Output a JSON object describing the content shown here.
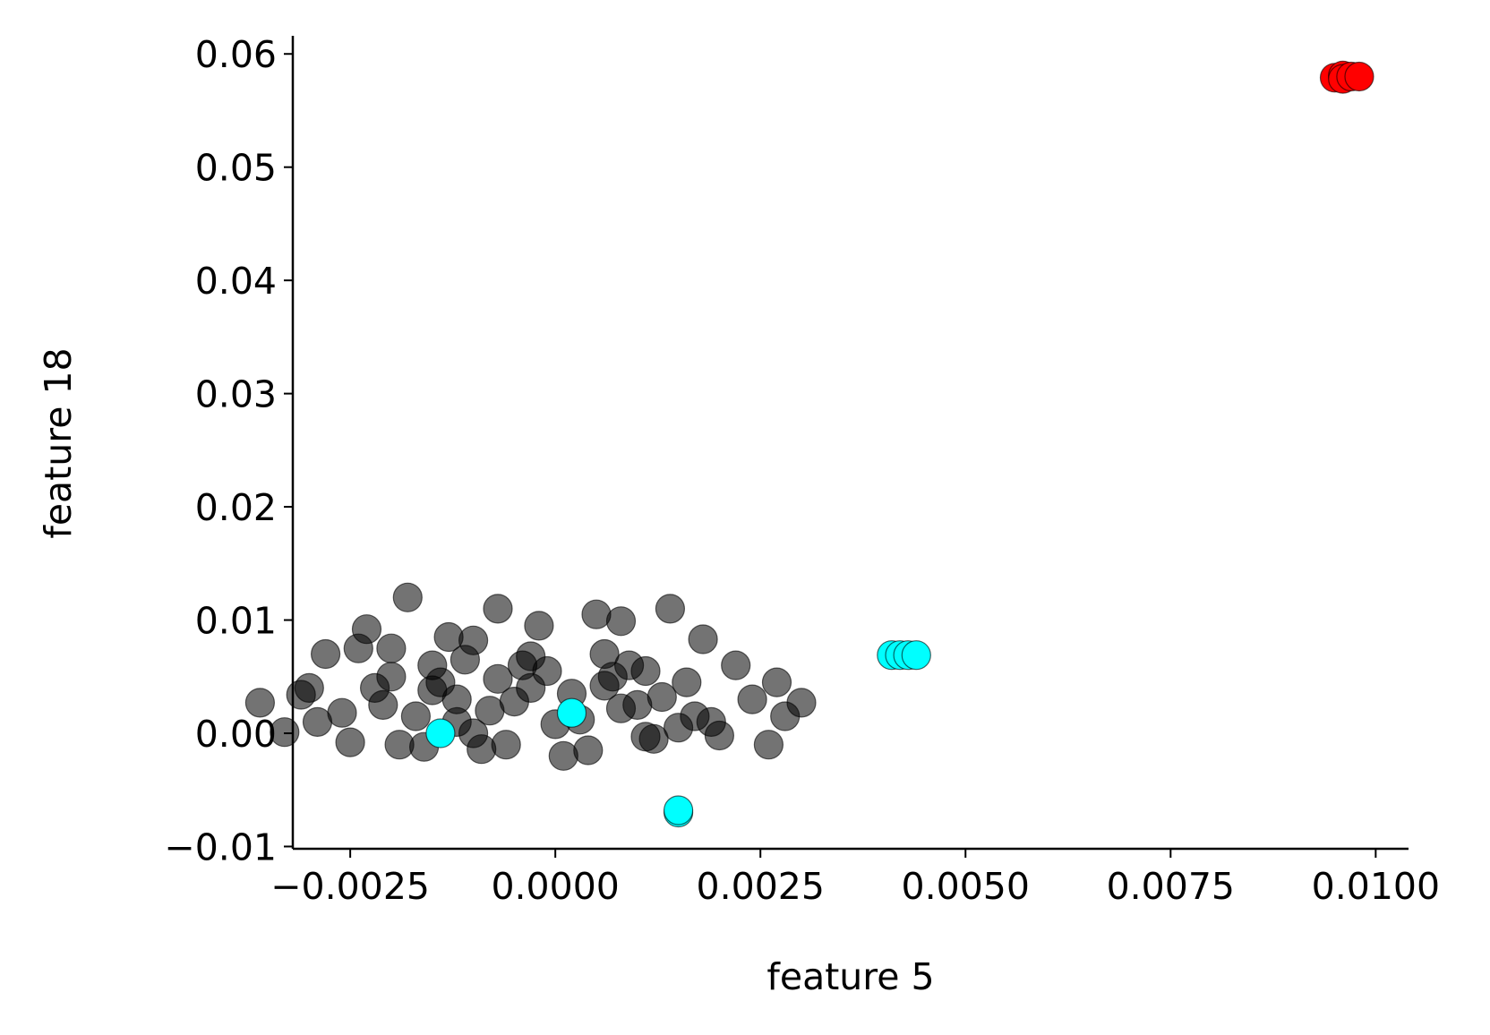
{
  "chart_data": {
    "type": "scatter",
    "title": "",
    "xlabel": "feature 5",
    "ylabel": "feature 18",
    "xlim": [
      -0.0032,
      0.0104
    ],
    "ylim": [
      -0.0102,
      0.0616
    ],
    "x_ticks": [
      -0.0025,
      0.0,
      0.0025,
      0.005,
      0.0075,
      0.01
    ],
    "x_tick_labels": [
      "−0.0025",
      "0.0000",
      "0.0025",
      "0.0050",
      "0.0075",
      "0.0100"
    ],
    "y_ticks": [
      -0.01,
      0.0,
      0.01,
      0.02,
      0.03,
      0.04,
      0.05,
      0.06
    ],
    "y_tick_labels": [
      "−0.01",
      "0.00",
      "0.01",
      "0.02",
      "0.03",
      "0.04",
      "0.05",
      "0.06"
    ],
    "grid": false,
    "legend": "none",
    "series": [
      {
        "color": "#000000",
        "alpha": 0.55,
        "x": [
          -0.0036,
          -0.0028,
          -0.0018,
          -0.001,
          -0.0015,
          -0.0023,
          -0.0031,
          -0.002,
          -0.0007,
          0.0005,
          0.0014,
          0.0022,
          0.003,
          0.0027,
          0.0018,
          0.0008,
          -0.0002,
          -0.0013,
          -0.0024,
          -0.0033,
          -0.0025,
          -0.0016,
          -0.0006,
          0.0004,
          0.0012,
          0.002,
          0.0026,
          0.0011,
          0.0001,
          -0.0009,
          -0.0019,
          -0.0029,
          -0.0021,
          -0.0012,
          -0.0003,
          0.0007,
          0.0016,
          0.0024,
          0.0009,
          -0.0001,
          -0.0011,
          -0.0022,
          -0.0017,
          -0.0008,
          0.0002,
          0.001,
          0.0019,
          0.0015,
          0.0006,
          -0.0004,
          -0.0014,
          -0.0026,
          -0.001,
          0.0,
          0.0013,
          0.0003,
          -0.0005,
          -0.0015,
          0.0008,
          -0.0007,
          0.0017,
          -0.002,
          0.0028,
          -0.003,
          0.0006,
          -0.0012,
          0.0011,
          -0.0003
        ],
        "y": [
          0.0027,
          0.007,
          0.012,
          0.0082,
          0.006,
          0.0092,
          0.0034,
          0.0075,
          0.011,
          0.0105,
          0.011,
          0.006,
          0.0027,
          0.0045,
          0.0083,
          0.0099,
          0.0095,
          0.0085,
          0.0075,
          0.0001,
          -0.0008,
          -0.0012,
          -0.001,
          -0.0015,
          -0.0005,
          -0.0002,
          -0.001,
          -0.0003,
          -0.002,
          -0.0014,
          -0.001,
          0.001,
          0.0025,
          0.003,
          0.004,
          0.005,
          0.0045,
          0.003,
          0.006,
          0.0055,
          0.0065,
          0.004,
          0.0015,
          0.002,
          0.0035,
          0.0025,
          0.001,
          0.0005,
          0.007,
          0.006,
          0.0045,
          0.0018,
          0.0,
          0.0008,
          0.0032,
          0.0012,
          0.0028,
          0.0038,
          0.0022,
          0.0048,
          0.0015,
          0.005,
          0.0015,
          0.004,
          0.0042,
          0.001,
          0.0055,
          0.0068
        ]
      },
      {
        "color": "#00ffff",
        "alpha": 1,
        "x": [
          -0.0014,
          0.0002,
          0.0015,
          0.0015,
          0.0041,
          0.0042,
          0.0043,
          0.0044
        ],
        "y": [
          0.0,
          0.0018,
          -0.007,
          -0.0068,
          0.0069,
          0.0069,
          0.0069,
          0.0069
        ]
      },
      {
        "color": "#ff0000",
        "alpha": 1,
        "x": [
          0.0095,
          0.0096,
          0.0096,
          0.0097,
          0.0098
        ],
        "y": [
          0.0579,
          0.0581,
          0.0578,
          0.058,
          0.058
        ]
      }
    ]
  }
}
